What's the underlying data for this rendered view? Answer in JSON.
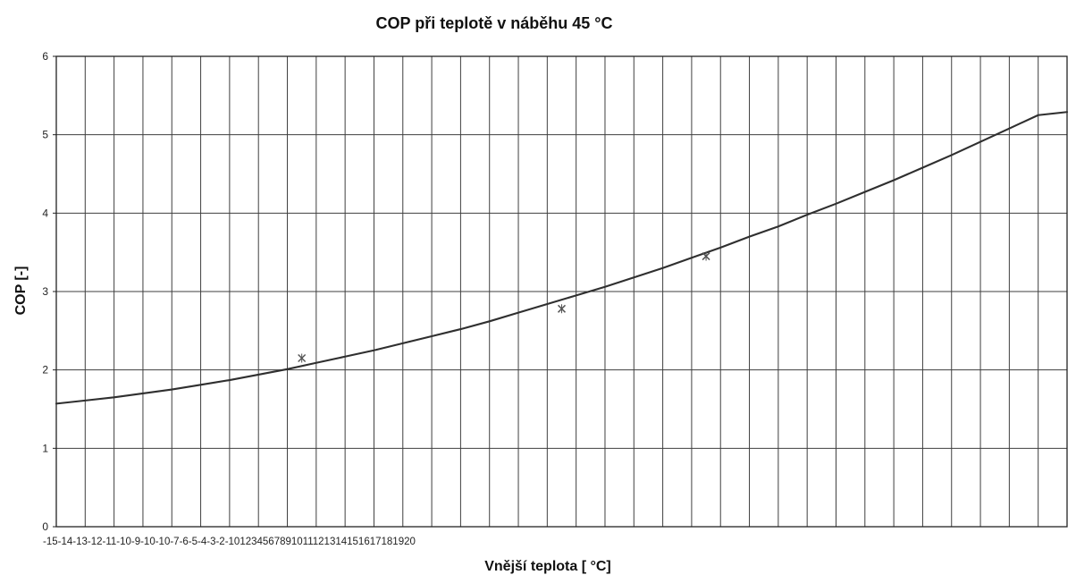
{
  "chart_data": {
    "type": "line",
    "title": "COP při teplotě v náběhu 45 °C",
    "xlabel": "Vnější teplota [ °C]",
    "ylabel": "COP [-]",
    "x_tick_text": "-15-14-13-12-11-10-9-10-10-7-6-5-4-3-2-101234567891011121314151617181920",
    "y_ticks": [
      "0",
      "1",
      "2",
      "3",
      "4",
      "5",
      "6"
    ],
    "xlim": [
      -15,
      20
    ],
    "ylim": [
      0,
      6
    ],
    "grid": true,
    "series": [
      {
        "kind": "line",
        "x": [
          -15,
          -14,
          -13,
          -12,
          -11,
          -10,
          -9,
          -8,
          -7,
          -6,
          -5,
          -4,
          -3,
          -2,
          -1,
          0,
          1,
          2,
          3,
          4,
          5,
          6,
          7,
          8,
          9,
          10,
          11,
          12,
          13,
          14,
          15,
          16,
          17,
          18,
          19,
          20
        ],
        "values": [
          1.57,
          1.61,
          1.65,
          1.7,
          1.75,
          1.81,
          1.87,
          1.94,
          2.01,
          2.09,
          2.17,
          2.25,
          2.34,
          2.43,
          2.52,
          2.62,
          2.73,
          2.84,
          2.95,
          3.06,
          3.18,
          3.3,
          3.43,
          3.56,
          3.7,
          3.83,
          3.98,
          4.12,
          4.27,
          4.42,
          4.58,
          4.74,
          4.91,
          5.08,
          5.25,
          5.29
        ]
      },
      {
        "kind": "scatter",
        "x": [
          -6.5,
          2.5,
          7.5
        ],
        "values": [
          2.15,
          2.78,
          3.45
        ]
      }
    ]
  }
}
